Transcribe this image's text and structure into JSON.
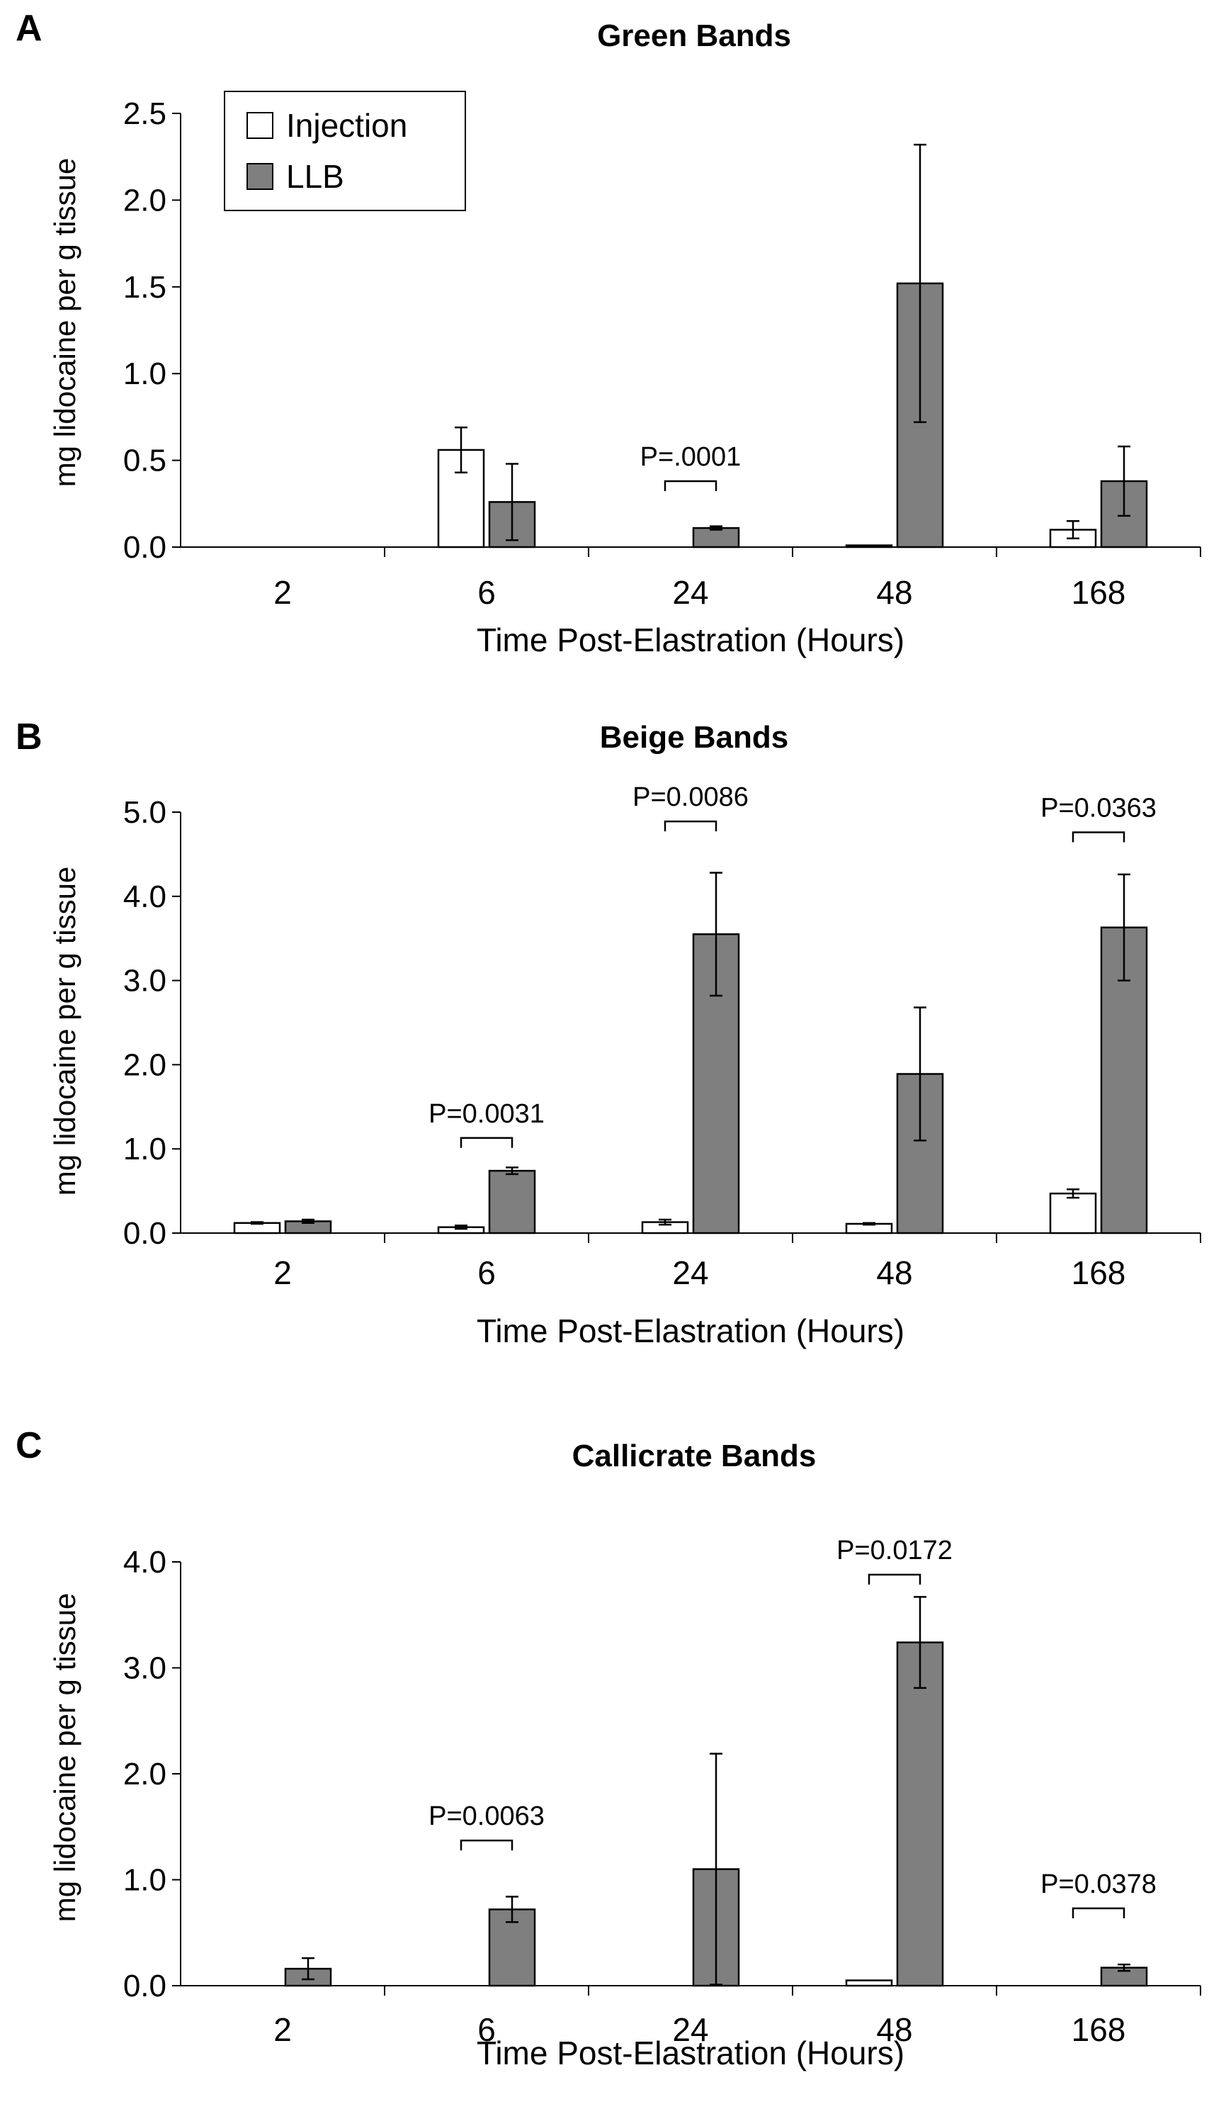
{
  "legend": {
    "items": [
      {
        "label": "Injection",
        "color": "#ffffff"
      },
      {
        "label": "LLB",
        "color": "#7f7f7f"
      }
    ]
  },
  "chart_data": [
    {
      "type": "bar",
      "panel_letter": "A",
      "title": "Green Bands",
      "xlabel": "Time Post-Elastration (Hours)",
      "ylabel": "mg lidocaine per g tissue",
      "ylim": [
        0,
        2.5
      ],
      "yticks": [
        "0.0",
        "0.5",
        "1.0",
        "1.5",
        "2.0",
        "2.5"
      ],
      "categories": [
        "2",
        "6",
        "24",
        "48",
        "168"
      ],
      "series": [
        {
          "name": "Injection",
          "values": [
            0,
            0.56,
            0,
            0.01,
            0.1
          ],
          "errors": [
            0,
            0.13,
            0,
            0,
            0.05
          ]
        },
        {
          "name": "LLB",
          "values": [
            0,
            0.26,
            0.11,
            1.52,
            0.38
          ],
          "errors": [
            0,
            0.22,
            0.01,
            0.8,
            0.2
          ]
        }
      ],
      "annotations": [
        {
          "category": "24",
          "text": "P=.0001",
          "value": 0.38
        }
      ]
    },
    {
      "type": "bar",
      "panel_letter": "B",
      "title": "Beige Bands",
      "xlabel": "Time Post-Elastration (Hours)",
      "ylabel": "mg lidocaine per g tissue",
      "ylim": [
        0,
        5
      ],
      "yticks": [
        "0.0",
        "1.0",
        "2.0",
        "3.0",
        "4.0",
        "5.0"
      ],
      "categories": [
        "2",
        "6",
        "24",
        "48",
        "168"
      ],
      "series": [
        {
          "name": "Injection",
          "values": [
            0.12,
            0.07,
            0.13,
            0.11,
            0.47
          ],
          "errors": [
            0.01,
            0.02,
            0.03,
            0.01,
            0.05
          ]
        },
        {
          "name": "LLB",
          "values": [
            0.14,
            0.74,
            3.55,
            1.89,
            3.63
          ],
          "errors": [
            0.02,
            0.04,
            0.73,
            0.79,
            0.63
          ]
        }
      ],
      "annotations": [
        {
          "category": "6",
          "text": "P=0.0031",
          "value": 1.13
        },
        {
          "category": "24",
          "text": "P=0.0086",
          "value": 4.89
        },
        {
          "category": "168",
          "text": "P=0.0363",
          "value": 4.76
        }
      ]
    },
    {
      "type": "bar",
      "panel_letter": "C",
      "title": "Callicrate Bands",
      "xlabel": "Time Post-Elastration (Hours)",
      "ylabel": "mg lidocaine per g tissue",
      "ylim": [
        0,
        4
      ],
      "yticks": [
        "0.0",
        "1.0",
        "2.0",
        "3.0",
        "4.0"
      ],
      "categories": [
        "2",
        "6",
        "24",
        "48",
        "168"
      ],
      "series": [
        {
          "name": "Injection",
          "values": [
            0,
            0,
            0,
            0.05,
            0
          ],
          "errors": [
            0,
            0,
            0,
            0,
            0
          ]
        },
        {
          "name": "LLB",
          "values": [
            0.16,
            0.72,
            1.1,
            3.24,
            0.17
          ],
          "errors": [
            0.1,
            0.12,
            1.09,
            0.43,
            0.03
          ]
        }
      ],
      "annotations": [
        {
          "category": "6",
          "text": "P=0.0063",
          "value": 1.37
        },
        {
          "category": "48",
          "text": "P=0.0172",
          "value": 3.88
        },
        {
          "category": "168",
          "text": "P=0.0378",
          "value": 0.73
        }
      ]
    }
  ]
}
